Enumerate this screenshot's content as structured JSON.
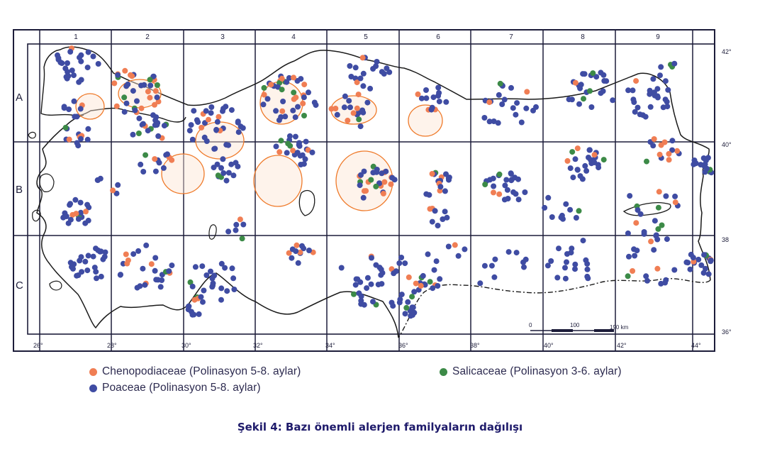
{
  "map": {
    "columns": [
      "1",
      "2",
      "3",
      "4",
      "5",
      "6",
      "7",
      "8",
      "9"
    ],
    "rows": [
      "A",
      "B",
      "C"
    ],
    "lon_labels": [
      "26°",
      "28°",
      "30°",
      "32°",
      "34°",
      "36°",
      "38°",
      "40°",
      "42°",
      "44°"
    ],
    "lat_labels": [
      "42°",
      "40°",
      "38",
      "36°"
    ],
    "scale_labels": [
      "0",
      "100",
      "190 km"
    ],
    "colors": {
      "frame": "#1d1d3a",
      "coast": "#1a1a1a",
      "chenopodiaceae": "#f07e54",
      "poaceae": "#3f4ca3",
      "salicaceae": "#3c8a47",
      "orange_outline": "#ef7a2a"
    }
  },
  "legend": {
    "chenopodiaceae": "Chenopodiaceae (Polinasyon 5-8. aylar)",
    "salicaceae": "Salicaceae (Polinasyon 3-6. aylar)",
    "poaceae": "Poaceae (Polinasyon 5-8. aylar)"
  },
  "caption": "Şekil 4: Bazı önemli alerjen familyaların dağılışı"
}
